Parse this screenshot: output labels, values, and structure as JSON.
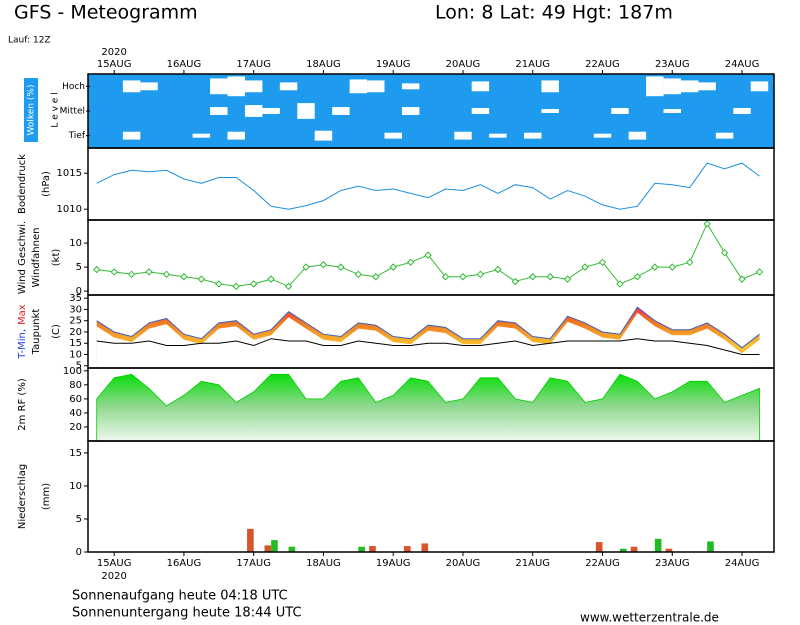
{
  "header": {
    "title": "GFS - Meteogramm",
    "location": "Lon: 8 Lat: 49 Hgt: 187m",
    "run": "Lauf: 12Z"
  },
  "footer": {
    "sunrise": "Sonnenaufgang heute 04:18 UTC",
    "sunset": "Sonnenuntergang heute 18:44 UTC",
    "source": "www.wetterzentrale.de"
  },
  "chart_data": [
    {
      "type": "band",
      "y_label": "Wolken (%)",
      "y_label2": "L e v e l",
      "x_label": "2020",
      "xlim": [
        -9,
        227
      ],
      "xticks": [
        {
          "value": 0,
          "label": "15AUG"
        },
        {
          "value": 24,
          "label": "16AUG"
        },
        {
          "value": 48,
          "label": "17AUG"
        },
        {
          "value": 72,
          "label": "18AUG"
        },
        {
          "value": 96,
          "label": "19AUG"
        },
        {
          "value": 120,
          "label": "20AUG"
        },
        {
          "value": 144,
          "label": "21AUG"
        },
        {
          "value": 168,
          "label": "22AUG"
        },
        {
          "value": 192,
          "label": "23AUG"
        },
        {
          "value": 216,
          "label": "24AUG"
        }
      ],
      "x": [
        -6,
        0,
        6,
        12,
        18,
        24,
        30,
        36,
        42,
        48,
        54,
        60,
        66,
        72,
        78,
        84,
        90,
        96,
        102,
        108,
        114,
        120,
        126,
        132,
        138,
        144,
        150,
        156,
        162,
        168,
        174,
        180,
        186,
        192,
        198,
        204,
        210,
        216,
        222
      ],
      "ylim": [
        0,
        100
      ],
      "color": "#1e9bef",
      "series": [
        {
          "name": "Hoch",
          "values": [
            0,
            0,
            60,
            40,
            0,
            0,
            0,
            80,
            100,
            60,
            0,
            40,
            0,
            0,
            0,
            70,
            60,
            0,
            30,
            0,
            0,
            0,
            50,
            0,
            0,
            0,
            60,
            0,
            0,
            0,
            0,
            0,
            100,
            80,
            60,
            40,
            0,
            0,
            50
          ]
        },
        {
          "name": "Mittel",
          "values": [
            0,
            0,
            0,
            0,
            0,
            0,
            0,
            40,
            0,
            60,
            30,
            0,
            80,
            0,
            40,
            0,
            0,
            0,
            40,
            0,
            0,
            0,
            30,
            0,
            0,
            0,
            20,
            0,
            0,
            0,
            30,
            0,
            0,
            20,
            0,
            0,
            0,
            30,
            0
          ]
        },
        {
          "name": "Tief",
          "values": [
            0,
            0,
            40,
            0,
            0,
            0,
            20,
            0,
            40,
            0,
            0,
            0,
            0,
            50,
            0,
            0,
            0,
            30,
            0,
            0,
            0,
            40,
            0,
            20,
            0,
            30,
            0,
            0,
            0,
            20,
            0,
            40,
            0,
            0,
            0,
            0,
            30,
            0,
            0
          ]
        }
      ]
    },
    {
      "type": "line",
      "y_label": "Bodendruck",
      "y_unit": "(hPa)",
      "xlim": [
        -9,
        227
      ],
      "x": [
        -6,
        0,
        6,
        12,
        18,
        24,
        30,
        36,
        42,
        48,
        54,
        60,
        66,
        72,
        78,
        84,
        90,
        96,
        102,
        108,
        114,
        120,
        126,
        132,
        138,
        144,
        150,
        156,
        162,
        168,
        174,
        180,
        186,
        192,
        198,
        204,
        210,
        216,
        222
      ],
      "ylim": [
        1008.5,
        1018.5
      ],
      "yticks": [
        1010,
        1015
      ],
      "series": [
        {
          "color": "#1e90e0",
          "values": [
            1013.6,
            1014.8,
            1015.4,
            1015.2,
            1015.4,
            1014.2,
            1013.6,
            1014.4,
            1014.4,
            1012.6,
            1010.4,
            1010.0,
            1010.5,
            1011.2,
            1012.6,
            1013.2,
            1012.6,
            1012.8,
            1012.2,
            1011.6,
            1012.8,
            1012.6,
            1013.4,
            1012.2,
            1013.4,
            1013.0,
            1011.4,
            1012.6,
            1011.8,
            1010.6,
            1010.0,
            1010.4,
            1013.6,
            1013.4,
            1013.0,
            1016.4,
            1015.6,
            1016.4,
            1014.6
          ]
        }
      ]
    },
    {
      "type": "line",
      "marker": "diamond",
      "y_label": "Wind Geschwi.",
      "y_label2": "Windfahnen",
      "y_unit": "(kt)",
      "xlim": [
        -9,
        227
      ],
      "x": [
        -6,
        0,
        6,
        12,
        18,
        24,
        30,
        36,
        42,
        48,
        54,
        60,
        66,
        72,
        78,
        84,
        90,
        96,
        102,
        108,
        114,
        120,
        126,
        132,
        138,
        144,
        150,
        156,
        162,
        168,
        174,
        180,
        186,
        192,
        198,
        204,
        210,
        216,
        222
      ],
      "ylim": [
        -0.8,
        14.8
      ],
      "yticks": [
        0,
        5,
        10
      ],
      "series": [
        {
          "color": "#33bb33",
          "values": [
            4.5,
            4,
            3.5,
            4,
            3.5,
            3,
            2.5,
            1.5,
            1,
            1.5,
            2.5,
            1,
            5,
            5.5,
            5,
            3.5,
            3,
            5,
            6,
            7.5,
            3,
            3,
            3.5,
            4.5,
            2,
            3,
            3,
            2.5,
            5,
            6,
            1.5,
            3,
            5,
            5,
            6,
            14,
            8,
            2.5,
            4
          ]
        }
      ]
    },
    {
      "type": "range",
      "y_label": "T-Min,",
      "y_label_b": "Max",
      "y_label2": "Taupunkt",
      "y_unit": "(C)",
      "xlim": [
        -9,
        227
      ],
      "x": [
        -6,
        0,
        6,
        12,
        18,
        24,
        30,
        36,
        42,
        48,
        54,
        60,
        66,
        72,
        78,
        84,
        90,
        96,
        102,
        108,
        114,
        120,
        126,
        132,
        138,
        144,
        150,
        156,
        162,
        168,
        174,
        180,
        186,
        192,
        198,
        204,
        210,
        216,
        222
      ],
      "ylim": [
        4,
        36.4
      ],
      "yticks": [
        5,
        10,
        15,
        20,
        25,
        30,
        35
      ],
      "series": [
        {
          "color": "#4060c0",
          "values": [
            25,
            20,
            18,
            24,
            26,
            19,
            17,
            24,
            25,
            19,
            21,
            29,
            24,
            19,
            18,
            24,
            23,
            18,
            17,
            23,
            22,
            17,
            17,
            25,
            24,
            18,
            17,
            27,
            24,
            20,
            19,
            31,
            25,
            21,
            21,
            24,
            19,
            13,
            19
          ]
        },
        {
          "color": "#000000",
          "values": [
            16,
            15,
            15,
            16,
            14,
            14,
            15,
            15,
            16,
            14,
            17,
            16,
            16,
            14,
            14,
            16,
            15,
            14,
            14,
            15,
            15,
            14,
            14,
            15,
            16,
            14,
            15,
            16,
            16,
            16,
            16,
            17,
            16,
            16,
            15,
            14,
            12,
            10,
            10
          ]
        }
      ]
    },
    {
      "type": "area",
      "y_label": "2m RF (%)",
      "xlim": [
        -9,
        227
      ],
      "x": [
        -6,
        0,
        6,
        12,
        18,
        24,
        30,
        36,
        42,
        48,
        54,
        60,
        66,
        72,
        78,
        84,
        90,
        96,
        102,
        108,
        114,
        120,
        126,
        132,
        138,
        144,
        150,
        156,
        162,
        168,
        174,
        180,
        186,
        192,
        198,
        204,
        210,
        216,
        222
      ],
      "ylim": [
        0,
        104
      ],
      "yticks": [
        20,
        40,
        60,
        80,
        100
      ],
      "series": [
        {
          "color": "#00cc00",
          "values": [
            60,
            90,
            95,
            75,
            50,
            65,
            85,
            80,
            55,
            70,
            95,
            95,
            60,
            60,
            85,
            90,
            55,
            65,
            90,
            85,
            55,
            60,
            90,
            90,
            60,
            55,
            90,
            85,
            55,
            60,
            95,
            85,
            60,
            70,
            85,
            85,
            55,
            65,
            75
          ]
        }
      ]
    },
    {
      "type": "bar",
      "y_label": "Niederschlag",
      "y_unit": "(mm)",
      "x_label": "2020",
      "xlim": [
        -9,
        227
      ],
      "xticks": [
        {
          "value": 0,
          "label": "15AUG"
        },
        {
          "value": 24,
          "label": "16AUG"
        },
        {
          "value": 48,
          "label": "17AUG"
        },
        {
          "value": 72,
          "label": "18AUG"
        },
        {
          "value": 96,
          "label": "19AUG"
        },
        {
          "value": 120,
          "label": "20AUG"
        },
        {
          "value": 144,
          "label": "21AUG"
        },
        {
          "value": 168,
          "label": "22AUG"
        },
        {
          "value": 192,
          "label": "23AUG"
        },
        {
          "value": 216,
          "label": "24AUG"
        }
      ],
      "x": [
        -6,
        0,
        6,
        12,
        18,
        24,
        30,
        36,
        42,
        48,
        54,
        60,
        66,
        72,
        78,
        84,
        90,
        96,
        102,
        108,
        114,
        120,
        126,
        132,
        138,
        144,
        150,
        156,
        162,
        168,
        174,
        180,
        186,
        192,
        198,
        204,
        210,
        216,
        222
      ],
      "ylim": [
        0,
        16.8
      ],
      "yticks": [
        0,
        5,
        10,
        15
      ],
      "series": [
        {
          "color": "#d9542b",
          "values": [
            0,
            0,
            0,
            0,
            0,
            0,
            0,
            0,
            0,
            3.5,
            1.0,
            0,
            0,
            0,
            0,
            0,
            0.9,
            0,
            0.9,
            1.3,
            0,
            0,
            0,
            0,
            0,
            0,
            0,
            0,
            0,
            1.5,
            0,
            0.8,
            0,
            0.5,
            0,
            0,
            0,
            0,
            0
          ]
        },
        {
          "color": "#22bb22",
          "values": [
            0,
            0,
            0,
            0,
            0,
            0,
            0,
            0,
            0,
            0,
            1.8,
            0.8,
            0,
            0,
            0,
            0.8,
            0,
            0,
            0,
            0,
            0,
            0,
            0,
            0,
            0,
            0,
            0,
            0,
            0,
            0,
            0.5,
            0,
            2.0,
            0,
            0,
            1.6,
            0,
            0,
            0
          ]
        }
      ]
    }
  ]
}
